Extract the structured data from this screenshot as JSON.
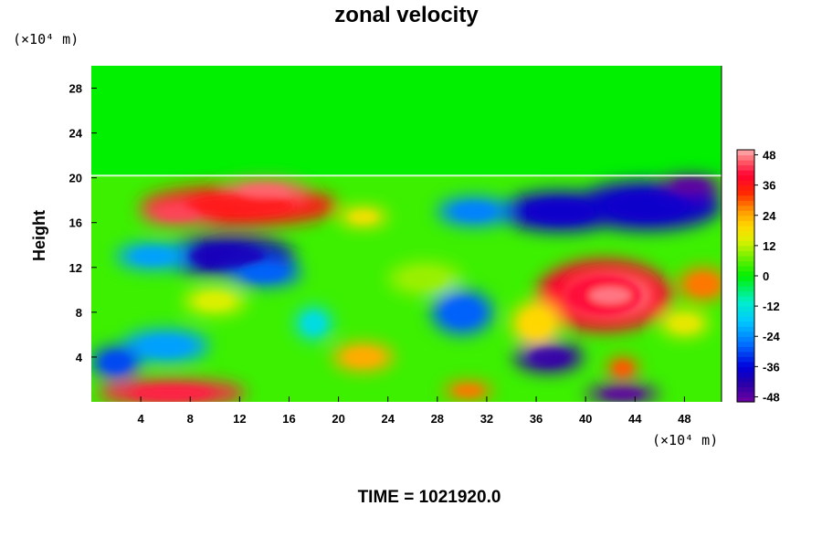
{
  "chart_data": {
    "type": "heatmap",
    "title": "zonal velocity",
    "ylabel": "Height",
    "x_unit_label": "(×10⁴ m)",
    "y_unit_label": "(×10⁴ m)",
    "time_label": "TIME = 1021920.0",
    "xlim": [
      0,
      51
    ],
    "ylim": [
      0,
      30
    ],
    "x_ticks": [
      4,
      8,
      12,
      16,
      20,
      24,
      28,
      32,
      36,
      40,
      44,
      48
    ],
    "y_ticks": [
      4,
      8,
      12,
      16,
      20,
      24,
      28
    ],
    "colorbar": {
      "min": -50,
      "max": 50,
      "ticks": [
        48,
        36,
        24,
        12,
        0,
        -12,
        -24,
        -36,
        -48
      ]
    },
    "background_value": 0,
    "tropopause_height": 20.2,
    "features": [
      {
        "x": 12,
        "y": 17.5,
        "rx": 8,
        "ry": 1.8,
        "value": 36
      },
      {
        "x": 14,
        "y": 18.8,
        "rx": 3.5,
        "ry": 1,
        "value": 46
      },
      {
        "x": 7,
        "y": 16.8,
        "rx": 3,
        "ry": 1,
        "value": 44
      },
      {
        "x": 11,
        "y": 13,
        "rx": 5.5,
        "ry": 1.8,
        "value": -40
      },
      {
        "x": 14,
        "y": 11.5,
        "rx": 3,
        "ry": 1.2,
        "value": -28
      },
      {
        "x": 5,
        "y": 13,
        "rx": 3,
        "ry": 1.2,
        "value": -22
      },
      {
        "x": 38,
        "y": 17,
        "rx": 5,
        "ry": 1.8,
        "value": -38
      },
      {
        "x": 45,
        "y": 17.5,
        "rx": 6,
        "ry": 2.2,
        "value": -38
      },
      {
        "x": 48.5,
        "y": 19.3,
        "rx": 2.5,
        "ry": 0.9,
        "value": -48
      },
      {
        "x": 31,
        "y": 17,
        "rx": 3,
        "ry": 1.3,
        "value": -25
      },
      {
        "x": 22,
        "y": 16.5,
        "rx": 2,
        "ry": 0.9,
        "value": 18
      },
      {
        "x": 41.5,
        "y": 9.5,
        "rx": 5.5,
        "ry": 3.2,
        "value": 40
      },
      {
        "x": 42,
        "y": 9.5,
        "rx": 3,
        "ry": 1.3,
        "value": 48
      },
      {
        "x": 49.5,
        "y": 10.5,
        "rx": 2,
        "ry": 1.5,
        "value": 28
      },
      {
        "x": 30,
        "y": 8,
        "rx": 2.5,
        "ry": 2,
        "value": -28
      },
      {
        "x": 18,
        "y": 7,
        "rx": 1.5,
        "ry": 1.5,
        "value": -14
      },
      {
        "x": 6,
        "y": 5,
        "rx": 3.5,
        "ry": 1.5,
        "value": -22
      },
      {
        "x": 2,
        "y": 3.5,
        "rx": 2,
        "ry": 1.5,
        "value": -30
      },
      {
        "x": 37,
        "y": 4,
        "rx": 2.8,
        "ry": 1.4,
        "value": -44
      },
      {
        "x": 43,
        "y": 3,
        "rx": 1.3,
        "ry": 1,
        "value": 30
      },
      {
        "x": 43,
        "y": 0.7,
        "rx": 3,
        "ry": 0.8,
        "value": -48
      },
      {
        "x": 6.5,
        "y": 0.8,
        "rx": 6,
        "ry": 1.2,
        "value": 42
      },
      {
        "x": 22,
        "y": 4,
        "rx": 2.5,
        "ry": 1.3,
        "value": 24
      },
      {
        "x": 30.5,
        "y": 1,
        "rx": 2,
        "ry": 0.8,
        "value": 28
      },
      {
        "x": 48,
        "y": 7,
        "rx": 2,
        "ry": 1.2,
        "value": 16
      },
      {
        "x": 27,
        "y": 11,
        "rx": 3,
        "ry": 1.5,
        "value": 10
      },
      {
        "x": 36,
        "y": 7,
        "rx": 2,
        "ry": 2,
        "value": 20
      },
      {
        "x": 10,
        "y": 9,
        "rx": 2.5,
        "ry": 1.2,
        "value": 14
      }
    ]
  }
}
